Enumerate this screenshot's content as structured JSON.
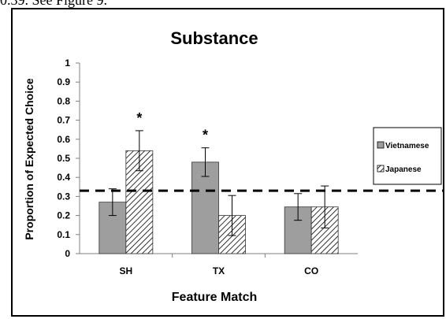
{
  "caption_fragment": "0.39. See Figure 9.",
  "chart_data": {
    "type": "bar",
    "title": "Substance",
    "xlabel": "Feature Match",
    "ylabel": "Proportion of Expected Choice",
    "categories": [
      "SH",
      "TX",
      "CO"
    ],
    "ylim": [
      0,
      1
    ],
    "yticks": [
      "0",
      "0.1",
      "0.2",
      "0.3",
      "0.4",
      "0.5",
      "0.6",
      "0.7",
      "0.8",
      "0.9",
      "1"
    ],
    "series": [
      {
        "name": "Vietnamese",
        "values": [
          0.27,
          0.48,
          0.245
        ],
        "errors": [
          0.07,
          0.075,
          0.07
        ],
        "fill": "solid-gray"
      },
      {
        "name": "Japanese",
        "values": [
          0.54,
          0.2,
          0.245
        ],
        "errors": [
          0.105,
          0.105,
          0.11
        ],
        "fill": "hatched"
      }
    ],
    "reference_line": 0.33,
    "significance": [
      {
        "category": "SH",
        "series": "Japanese",
        "label": "*"
      },
      {
        "category": "TX",
        "series": "Vietnamese",
        "label": "*"
      }
    ],
    "legend_position": "right",
    "colors": {
      "vietnamese": "#9e9e9e",
      "hatch": "#000000"
    }
  }
}
